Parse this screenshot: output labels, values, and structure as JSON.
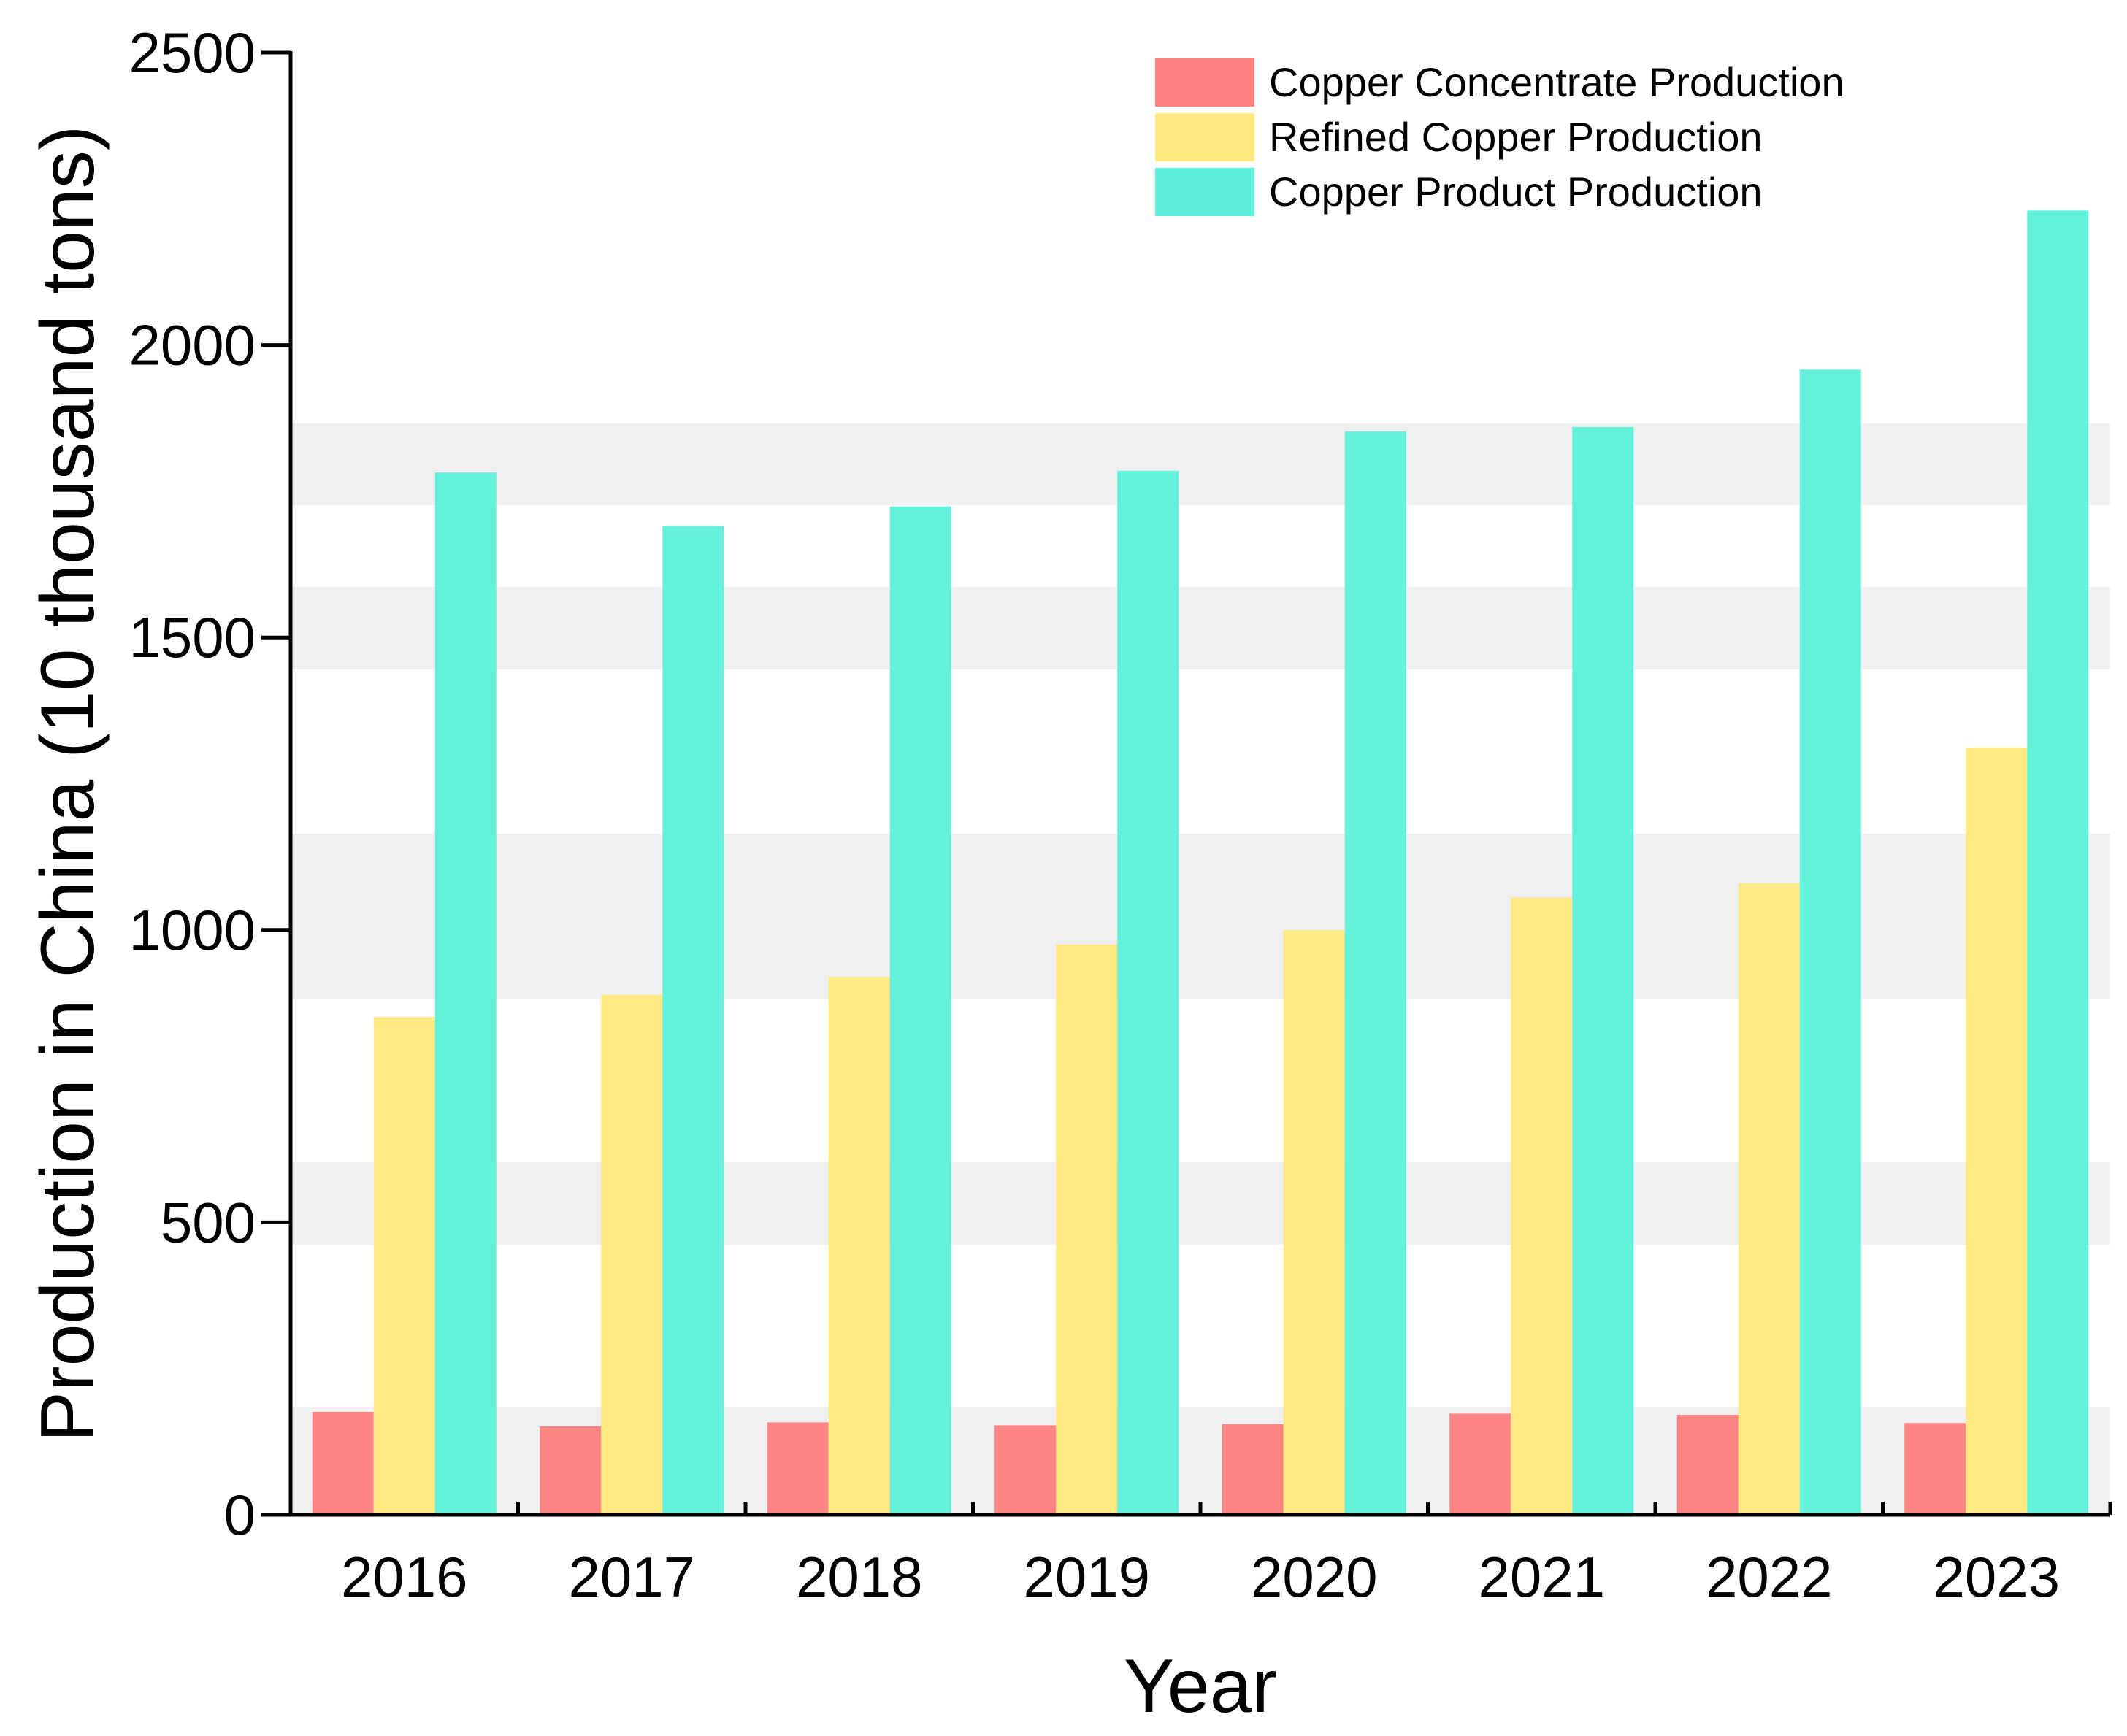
{
  "chart_data": {
    "type": "bar",
    "categories": [
      "2016",
      "2017",
      "2018",
      "2019",
      "2020",
      "2021",
      "2022",
      "2023"
    ],
    "series": [
      {
        "name": "Copper Concentrate Production",
        "color": "#FF8080",
        "values": [
          176,
          151,
          158,
          153,
          155,
          173,
          171,
          157
        ]
      },
      {
        "name": "Refined Copper Production",
        "color": "#FFE880",
        "values": [
          851,
          889,
          920,
          975,
          1000,
          1055,
          1080,
          1312
        ]
      },
      {
        "name": "Copper Product Production",
        "color": "#60EFDB",
        "values": [
          1782,
          1691,
          1724,
          1785,
          1852,
          1860,
          1958,
          2230
        ]
      }
    ],
    "xlabel": "Year",
    "ylabel": "Production in China (10 thousand tons)",
    "ylim": [
      0,
      2500
    ],
    "yticks": [
      "0",
      "500",
      "1000",
      "1500",
      "2000",
      "2500"
    ],
    "grid": false,
    "legend_position": "top-right"
  }
}
